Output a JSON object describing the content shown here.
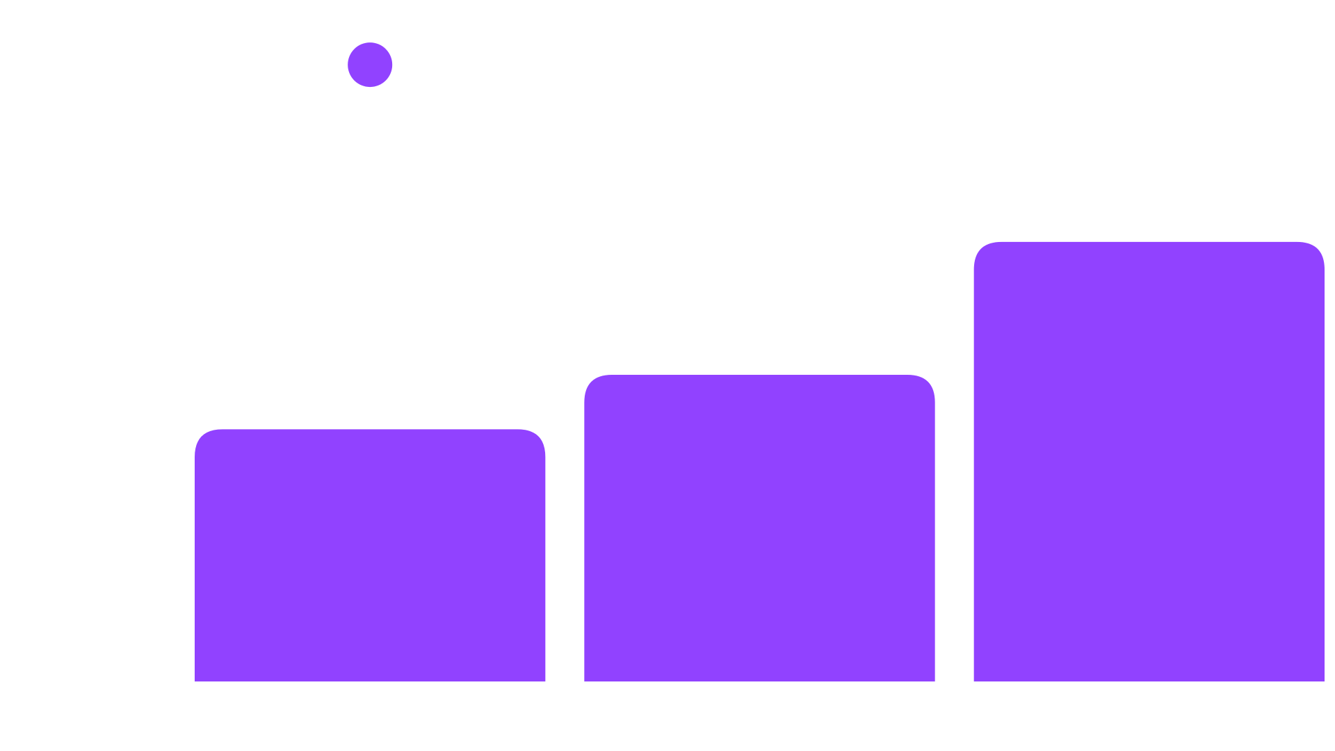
{
  "colors": {
    "background": "#ffffff",
    "bar": "#9142ff",
    "marker": "#9142ff"
  },
  "chart_data": {
    "type": "bar",
    "categories": [
      "",
      "",
      ""
    ],
    "values": [
      37,
      45,
      64.5
    ],
    "title": "",
    "xlabel": "",
    "ylabel": "",
    "ylim": [
      0,
      100
    ],
    "grid": false,
    "legend": "none",
    "bar_corners": "rounded-top",
    "marker": {
      "shape": "circle",
      "category_index": 0,
      "value": 90.5
    }
  }
}
